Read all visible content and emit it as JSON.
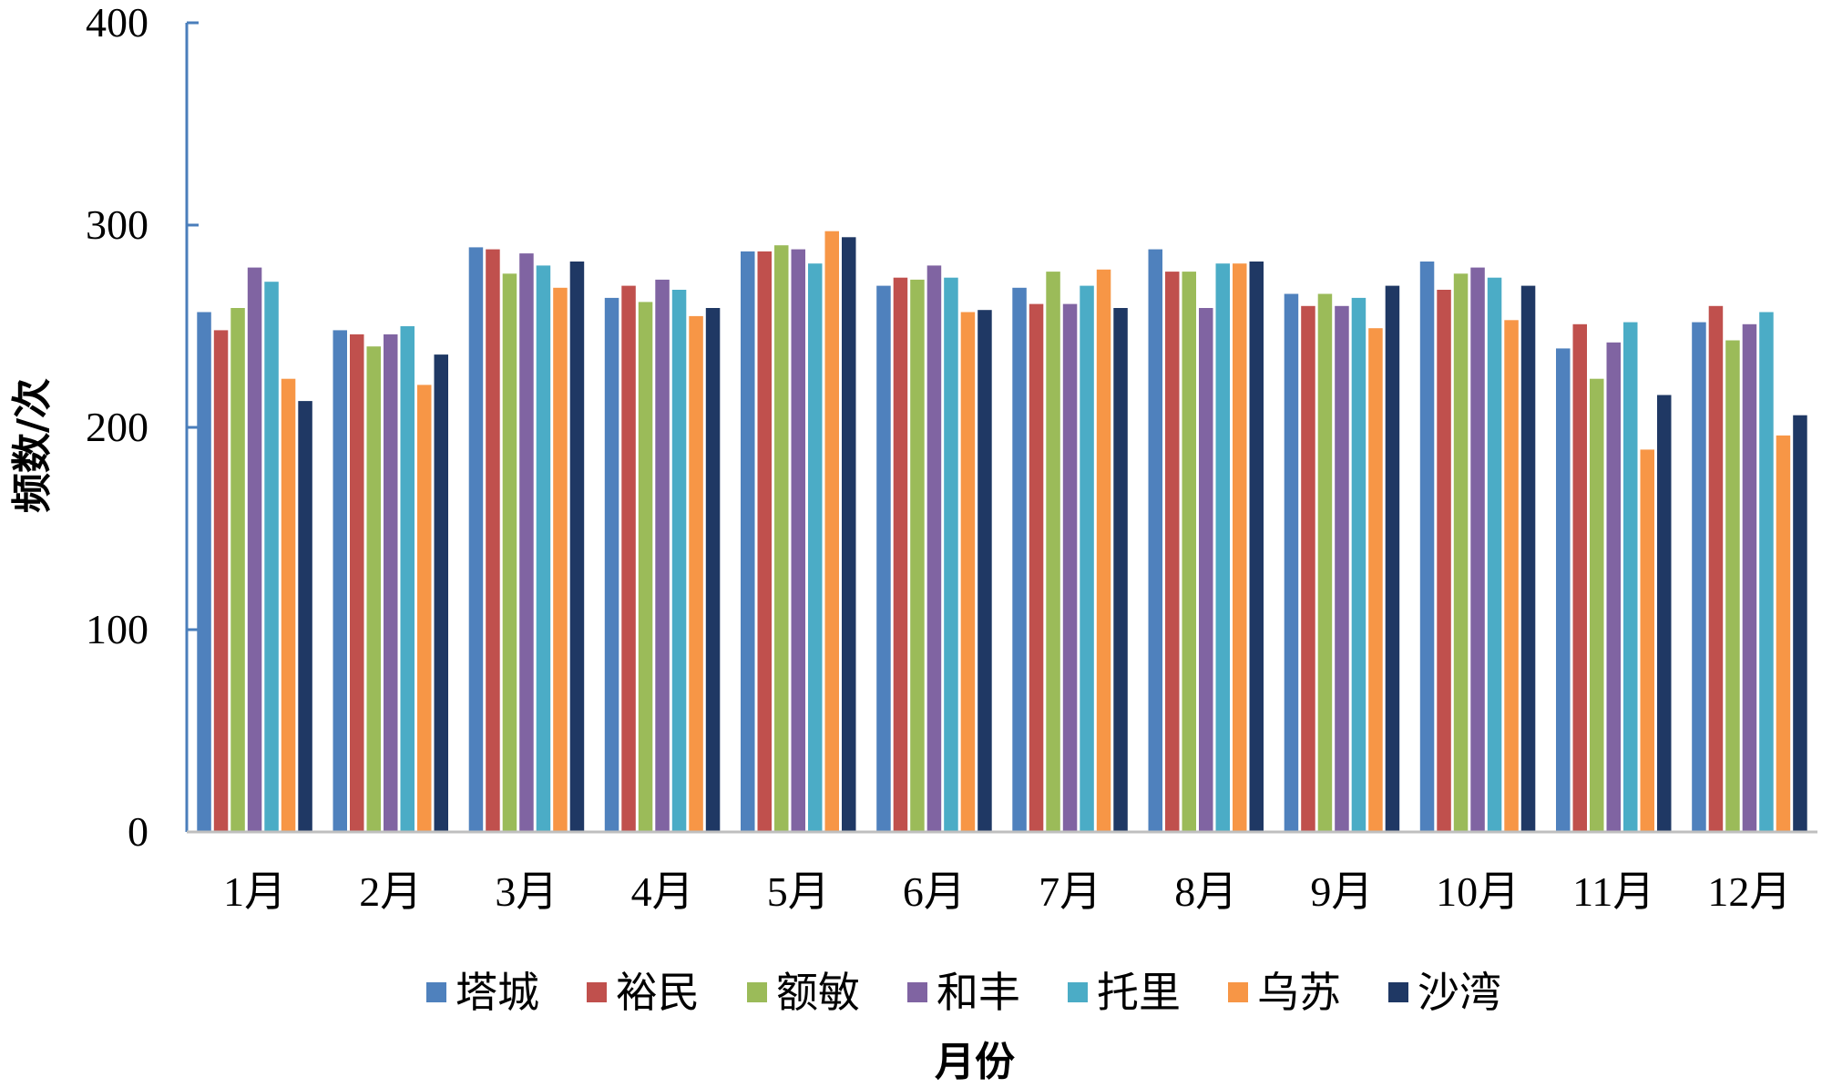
{
  "chart_data": {
    "type": "bar",
    "xlabel": "月份",
    "ylabel": "频数/次",
    "ylim": [
      0,
      400
    ],
    "yticks": [
      "0",
      "100",
      "200",
      "300",
      "400"
    ],
    "grid": false,
    "legend_position": "bottom",
    "categories": [
      "1月",
      "2月",
      "3月",
      "4月",
      "5月",
      "6月",
      "7月",
      "8月",
      "9月",
      "10月",
      "11月",
      "12月"
    ],
    "series": [
      {
        "name": "塔城",
        "color": "#4f81bd",
        "values": [
          257,
          248,
          289,
          264,
          287,
          270,
          269,
          288,
          266,
          282,
          239,
          252
        ]
      },
      {
        "name": "裕民",
        "color": "#c0504d",
        "values": [
          248,
          246,
          288,
          270,
          287,
          274,
          261,
          277,
          260,
          268,
          251,
          260
        ]
      },
      {
        "name": "额敏",
        "color": "#9bbb59",
        "values": [
          259,
          240,
          276,
          262,
          290,
          273,
          277,
          277,
          266,
          276,
          224,
          243
        ]
      },
      {
        "name": "和丰",
        "color": "#8064a2",
        "values": [
          279,
          246,
          286,
          273,
          288,
          280,
          261,
          259,
          260,
          279,
          242,
          251
        ]
      },
      {
        "name": "托里",
        "color": "#4bacc6",
        "values": [
          272,
          250,
          280,
          268,
          281,
          274,
          270,
          281,
          264,
          274,
          252,
          257
        ]
      },
      {
        "name": "乌苏",
        "color": "#f79646",
        "values": [
          224,
          221,
          269,
          255,
          297,
          257,
          278,
          281,
          249,
          253,
          189,
          196
        ]
      },
      {
        "name": "沙湾",
        "color": "#1f3864",
        "values": [
          213,
          236,
          282,
          259,
          294,
          258,
          259,
          282,
          270,
          270,
          216,
          206
        ]
      }
    ]
  }
}
